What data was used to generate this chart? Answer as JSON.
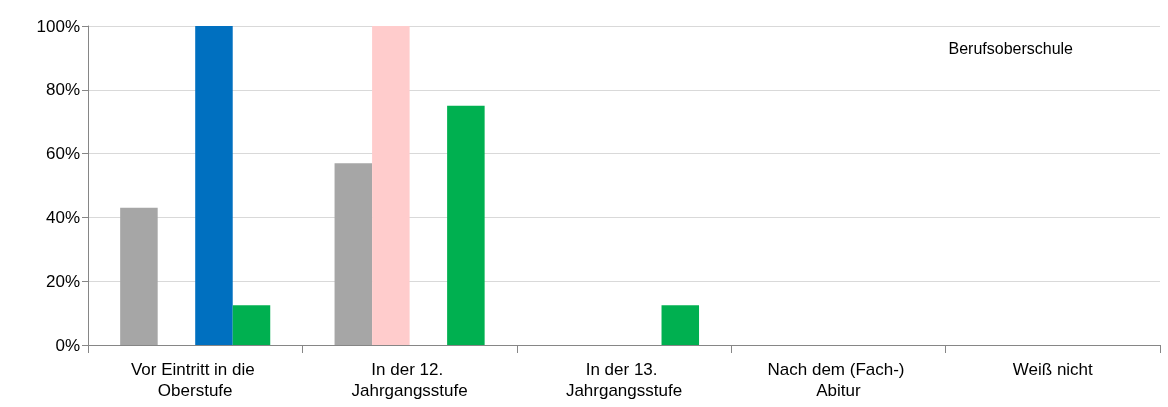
{
  "chart_data": {
    "type": "bar",
    "categories": [
      "Vor Eintritt in die Oberstufe",
      "In der 12. Jahrgangsstufe",
      "In der 13. Jahrgangsstufe",
      "Nach dem (Fach-) Abitur",
      "Weiß nicht"
    ],
    "series": [
      {
        "color": "#a6a6a6",
        "values": [
          43,
          57,
          0,
          0,
          0
        ]
      },
      {
        "color": "#ffcccc",
        "values": [
          0,
          100,
          0,
          0,
          0
        ]
      },
      {
        "color": "#0070c0",
        "values": [
          100,
          0,
          0,
          0,
          0
        ]
      },
      {
        "color": "#00b050",
        "values": [
          12.5,
          75,
          12.5,
          0,
          0
        ]
      }
    ],
    "ylim": [
      0,
      100
    ],
    "yticks": [
      {
        "value": 0,
        "label": "0%"
      },
      {
        "value": 20,
        "label": "20%"
      },
      {
        "value": 40,
        "label": "40%"
      },
      {
        "value": 60,
        "label": "60%"
      },
      {
        "value": 80,
        "label": "80%"
      },
      {
        "value": 100,
        "label": "100%"
      }
    ],
    "grid": "y",
    "annotations": [
      "Berufsoberschule"
    ]
  }
}
